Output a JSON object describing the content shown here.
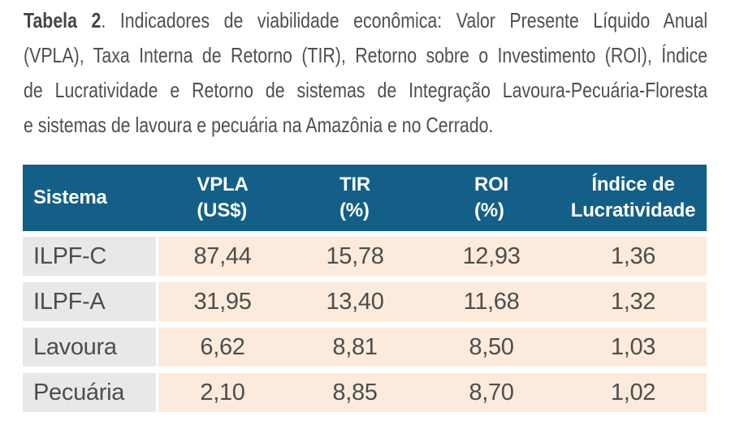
{
  "caption": {
    "label_bold": "Tabela 2",
    "line1_rest": ". Indicadores de viabilidade econômica: Valor Presente Líquido Anual",
    "line2": "(VPLA), Taxa Interna de Retorno (TIR), Retorno sobre o Investimento (ROI), Índice",
    "line3": "de Lucratividade e Retorno de sistemas de Integração Lavoura-Pecuária-Floresta",
    "line4": "e sistemas de lavoura e pecuária na Amazônia e no Cerrado."
  },
  "table": {
    "header": {
      "col1": {
        "line1": "Sistema",
        "line2": ""
      },
      "col2": {
        "line1": "VPLA",
        "line2": "(US$)"
      },
      "col3": {
        "line1": "TIR",
        "line2": "(%)"
      },
      "col4": {
        "line1": "ROI",
        "line2": "(%)"
      },
      "col5": {
        "line1": "Índice de",
        "line2": "Lucratividade"
      }
    },
    "rows": [
      {
        "sistema": "ILPF-C",
        "vpla": "87,44",
        "tir": "15,78",
        "roi": "12,93",
        "indice": "1,36"
      },
      {
        "sistema": "ILPF-A",
        "vpla": "31,95",
        "tir": "13,40",
        "roi": "11,68",
        "indice": "1,32"
      },
      {
        "sistema": "Lavoura",
        "vpla": "6,62",
        "tir": "8,81",
        "roi": "8,50",
        "indice": "1,03"
      },
      {
        "sistema": "Pecuária",
        "vpla": "2,10",
        "tir": "8,85",
        "roi": "8,70",
        "indice": "1,02"
      }
    ]
  },
  "chart_data": {
    "type": "table",
    "title": "Tabela 2. Indicadores de viabilidade econômica: Valor Presente Líquido Anual (VPLA), Taxa Interna de Retorno (TIR), Retorno sobre o Investimento (ROI), Índice de Lucratividade e Retorno de sistemas de Integração Lavoura-Pecuária-Floresta e sistemas de lavoura e pecuária na Amazônia e no Cerrado.",
    "columns": [
      "Sistema",
      "VPLA (US$)",
      "TIR (%)",
      "ROI (%)",
      "Índice de Lucratividade"
    ],
    "rows": [
      [
        "ILPF-C",
        87.44,
        15.78,
        12.93,
        1.36
      ],
      [
        "ILPF-A",
        31.95,
        13.4,
        11.68,
        1.32
      ],
      [
        "Lavoura",
        6.62,
        8.81,
        8.5,
        1.03
      ],
      [
        "Pecuária",
        2.1,
        8.85,
        8.7,
        1.02
      ]
    ]
  },
  "colors": {
    "header_bg": "#135f87",
    "label_col_bg": "#e9e8e8",
    "data_col_bg": "#fcebdc",
    "header_text": "#ffffff",
    "body_text": "#4d4d4d",
    "caption_text": "#4f4f4f"
  }
}
